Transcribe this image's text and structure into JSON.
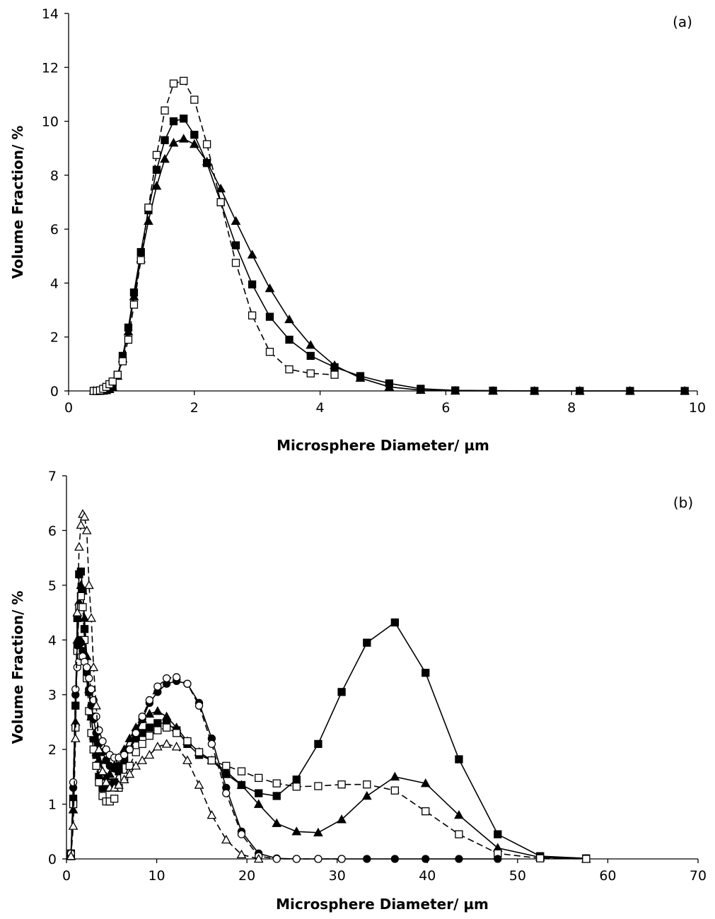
{
  "chart_data": [
    {
      "type": "line",
      "annotation": "(a)",
      "xlabel": "Microsphere Diameter/ µm",
      "ylabel": "Volume Fraction/ %",
      "xlim": [
        0,
        10
      ],
      "ylim": [
        0,
        14
      ],
      "xticks": [
        0,
        2,
        4,
        6,
        8,
        10
      ],
      "yticks": [
        0,
        2,
        4,
        6,
        8,
        10,
        12,
        14
      ],
      "grid": false,
      "legend": "none",
      "series": [
        {
          "marker": "filled-triangle",
          "dash": "solid",
          "x": [
            0.4,
            0.45,
            0.5,
            0.55,
            0.6,
            0.65,
            0.7,
            0.78,
            0.86,
            0.95,
            1.04,
            1.15,
            1.27,
            1.4,
            1.53,
            1.67,
            1.83,
            2.0,
            2.2,
            2.42,
            2.66,
            2.92,
            3.2,
            3.51,
            3.85,
            4.23,
            4.64,
            5.1,
            5.6,
            6.15,
            6.75,
            7.41,
            8.13,
            8.93,
            9.8
          ],
          "y": [
            0,
            0,
            0,
            0,
            0.02,
            0.06,
            0.14,
            0.55,
            1.2,
            2.2,
            3.5,
            4.9,
            6.3,
            7.6,
            8.6,
            9.2,
            9.35,
            9.15,
            8.5,
            7.5,
            6.3,
            5.05,
            3.8,
            2.65,
            1.7,
            0.95,
            0.48,
            0.15,
            0.03,
            0,
            0,
            0,
            0,
            0,
            0
          ]
        },
        {
          "marker": "filled-square",
          "dash": "solid",
          "x": [
            0.4,
            0.45,
            0.5,
            0.55,
            0.6,
            0.65,
            0.7,
            0.78,
            0.86,
            0.95,
            1.04,
            1.15,
            1.27,
            1.4,
            1.53,
            1.67,
            1.83,
            2.0,
            2.2,
            2.42,
            2.66,
            2.92,
            3.2,
            3.51,
            3.85,
            4.23,
            4.64,
            5.1,
            5.6,
            6.15,
            6.75,
            7.41,
            8.13,
            8.93,
            9.8
          ],
          "y": [
            0,
            0,
            0,
            0.02,
            0.05,
            0.1,
            0.2,
            0.6,
            1.3,
            2.35,
            3.65,
            5.15,
            6.7,
            8.2,
            9.3,
            10.0,
            10.1,
            9.5,
            8.45,
            7.0,
            5.4,
            3.95,
            2.75,
            1.9,
            1.3,
            0.88,
            0.55,
            0.28,
            0.08,
            0.02,
            0.01,
            0,
            0,
            0,
            0
          ]
        },
        {
          "marker": "open-square",
          "dash": "dashed",
          "x": [
            0.4,
            0.45,
            0.5,
            0.55,
            0.6,
            0.65,
            0.7,
            0.78,
            0.86,
            0.95,
            1.04,
            1.15,
            1.27,
            1.4,
            1.53,
            1.67,
            1.83,
            2.0,
            2.2,
            2.42,
            2.66,
            2.92,
            3.2,
            3.51,
            3.85,
            4.23
          ],
          "y": [
            0,
            0,
            0.02,
            0.08,
            0.15,
            0.25,
            0.35,
            0.6,
            1.1,
            1.9,
            3.2,
            4.85,
            6.8,
            8.75,
            10.4,
            11.4,
            11.5,
            10.8,
            9.15,
            7.0,
            4.75,
            2.8,
            1.45,
            0.8,
            0.65,
            0.6
          ]
        }
      ]
    },
    {
      "type": "line",
      "annotation": "(b)",
      "xlabel": "Microsphere Diameter/ µm",
      "ylabel": "Volume Fraction/ %",
      "xlim": [
        0,
        70
      ],
      "ylim": [
        0,
        7
      ],
      "xticks": [
        0,
        10,
        20,
        30,
        40,
        50,
        60,
        70
      ],
      "yticks": [
        0,
        1,
        2,
        3,
        4,
        5,
        6,
        7
      ],
      "grid": false,
      "legend": "none",
      "series": [
        {
          "marker": "filled-square",
          "dash": "solid",
          "x": [
            0.5,
            0.75,
            1.0,
            1.2,
            1.4,
            1.6,
            1.8,
            2.0,
            2.25,
            2.5,
            2.75,
            3.0,
            3.3,
            3.6,
            4.0,
            4.4,
            4.8,
            5.3,
            5.8,
            6.4,
            7.0,
            7.7,
            8.4,
            9.2,
            10.1,
            11.1,
            12.2,
            13.4,
            14.7,
            16.1,
            17.7,
            19.4,
            21.3,
            23.3,
            25.5,
            27.9,
            30.5,
            33.3,
            36.4,
            39.8,
            43.5,
            47.8,
            52.5,
            57.6
          ],
          "y": [
            0.1,
            1.1,
            2.8,
            4.4,
            5.2,
            5.25,
            4.9,
            4.2,
            3.45,
            3.05,
            2.6,
            2.2,
            1.9,
            1.5,
            1.3,
            1.3,
            1.35,
            1.4,
            1.6,
            1.8,
            2.0,
            2.2,
            2.3,
            2.4,
            2.48,
            2.48,
            2.35,
            2.1,
            1.9,
            1.8,
            1.55,
            1.35,
            1.2,
            1.15,
            1.45,
            2.1,
            3.05,
            3.95,
            4.32,
            3.4,
            1.82,
            0.45,
            0.05,
            0.01
          ]
        },
        {
          "marker": "filled-triangle",
          "dash": "solid",
          "x": [
            0.5,
            0.75,
            1.0,
            1.2,
            1.4,
            1.6,
            1.8,
            2.0,
            2.25,
            2.5,
            2.75,
            3.0,
            3.3,
            3.6,
            4.0,
            4.4,
            4.8,
            5.3,
            5.8,
            6.4,
            7.0,
            7.7,
            8.4,
            9.2,
            10.1,
            11.1,
            12.2,
            13.4,
            14.7,
            16.1,
            17.7,
            19.4,
            21.3,
            23.3,
            25.5,
            27.9,
            30.5,
            33.3,
            36.4,
            39.8,
            43.5,
            47.8,
            52.5,
            57.6
          ],
          "y": [
            0.05,
            0.9,
            2.5,
            4.0,
            4.7,
            5.0,
            4.9,
            4.4,
            3.7,
            3.1,
            2.6,
            2.25,
            1.95,
            1.8,
            1.6,
            1.5,
            1.55,
            1.7,
            1.85,
            2.0,
            2.2,
            2.4,
            2.55,
            2.65,
            2.7,
            2.6,
            2.4,
            2.15,
            1.95,
            1.8,
            1.6,
            1.35,
            1.0,
            0.65,
            0.5,
            0.48,
            0.72,
            1.15,
            1.5,
            1.38,
            0.8,
            0.2,
            0.03,
            0
          ]
        },
        {
          "marker": "open-square",
          "dash": "dashed",
          "x": [
            0.5,
            0.75,
            1.0,
            1.2,
            1.4,
            1.6,
            1.8,
            2.0,
            2.25,
            2.5,
            2.75,
            3.0,
            3.3,
            3.6,
            4.0,
            4.4,
            4.8,
            5.3,
            5.8,
            6.4,
            7.0,
            7.7,
            8.4,
            9.2,
            10.1,
            11.1,
            12.2,
            13.4,
            14.7,
            16.1,
            17.7,
            19.4,
            21.3,
            23.3,
            25.5,
            27.9,
            30.5,
            33.3,
            36.4,
            39.8,
            43.5,
            47.8,
            52.5,
            57.6
          ],
          "y": [
            0.05,
            1.0,
            2.4,
            3.8,
            4.6,
            4.8,
            4.6,
            4.0,
            3.3,
            2.7,
            2.3,
            2.0,
            1.7,
            1.4,
            1.15,
            1.05,
            1.05,
            1.1,
            1.3,
            1.5,
            1.7,
            1.95,
            2.1,
            2.25,
            2.35,
            2.4,
            2.3,
            2.15,
            1.95,
            1.8,
            1.7,
            1.6,
            1.48,
            1.38,
            1.32,
            1.33,
            1.36,
            1.36,
            1.25,
            0.87,
            0.45,
            0.1,
            0.01,
            0
          ]
        },
        {
          "marker": "filled-circle",
          "dash": "solid",
          "x": [
            0.5,
            0.75,
            1.0,
            1.2,
            1.4,
            1.6,
            1.8,
            2.0,
            2.25,
            2.5,
            2.75,
            3.0,
            3.3,
            3.6,
            4.0,
            4.4,
            4.8,
            5.3,
            5.8,
            6.4,
            7.0,
            7.7,
            8.4,
            9.2,
            10.1,
            11.1,
            12.2,
            13.4,
            14.7,
            16.1,
            17.7,
            19.4,
            21.3,
            23.3,
            25.5,
            27.9,
            30.5,
            33.3,
            36.4,
            39.8,
            43.5,
            47.8
          ],
          "y": [
            0.1,
            1.3,
            3.0,
            3.9,
            4.0,
            3.95,
            3.8,
            3.65,
            3.4,
            3.1,
            2.8,
            2.55,
            2.3,
            2.1,
            1.95,
            1.8,
            1.7,
            1.65,
            1.7,
            1.8,
            2.0,
            2.3,
            2.55,
            2.85,
            3.05,
            3.2,
            3.25,
            3.2,
            2.85,
            2.2,
            1.3,
            0.5,
            0.1,
            0.01,
            0,
            0,
            0,
            0,
            0,
            0,
            0,
            0
          ]
        },
        {
          "marker": "open-circle",
          "dash": "dashed",
          "x": [
            0.5,
            0.75,
            1.0,
            1.2,
            1.4,
            1.6,
            1.8,
            2.0,
            2.25,
            2.5,
            2.75,
            3.0,
            3.3,
            3.6,
            4.0,
            4.4,
            4.8,
            5.3,
            5.8,
            6.4,
            7.0,
            7.7,
            8.4,
            9.2,
            10.1,
            11.1,
            12.2,
            13.4,
            14.7,
            16.1,
            17.7,
            19.4,
            21.3,
            23.3,
            25.5,
            27.9,
            30.5
          ],
          "y": [
            0.1,
            1.4,
            3.1,
            3.5,
            3.6,
            3.7,
            3.7,
            3.6,
            3.5,
            3.3,
            3.1,
            2.9,
            2.6,
            2.35,
            2.15,
            2.0,
            1.9,
            1.85,
            1.85,
            1.9,
            2.0,
            2.3,
            2.6,
            2.9,
            3.15,
            3.3,
            3.32,
            3.2,
            2.8,
            2.1,
            1.2,
            0.45,
            0.05,
            0,
            0,
            0,
            0
          ]
        },
        {
          "marker": "open-triangle",
          "dash": "dashed",
          "x": [
            0.5,
            0.75,
            1.0,
            1.2,
            1.4,
            1.6,
            1.8,
            2.0,
            2.25,
            2.5,
            2.75,
            3.0,
            3.3,
            3.6,
            4.0,
            4.4,
            4.8,
            5.3,
            5.8,
            6.4,
            7.0,
            7.7,
            8.4,
            9.2,
            10.1,
            11.1,
            12.2,
            13.4,
            14.7,
            16.1,
            17.7,
            19.4,
            21.3
          ],
          "y": [
            0.05,
            0.6,
            2.2,
            4.5,
            5.7,
            6.1,
            6.3,
            6.25,
            6.0,
            5.0,
            4.4,
            3.5,
            2.8,
            2.0,
            1.6,
            1.4,
            1.3,
            1.3,
            1.35,
            1.45,
            1.55,
            1.7,
            1.8,
            1.9,
            2.05,
            2.1,
            2.05,
            1.8,
            1.35,
            0.8,
            0.35,
            0.08,
            0
          ]
        }
      ]
    }
  ]
}
